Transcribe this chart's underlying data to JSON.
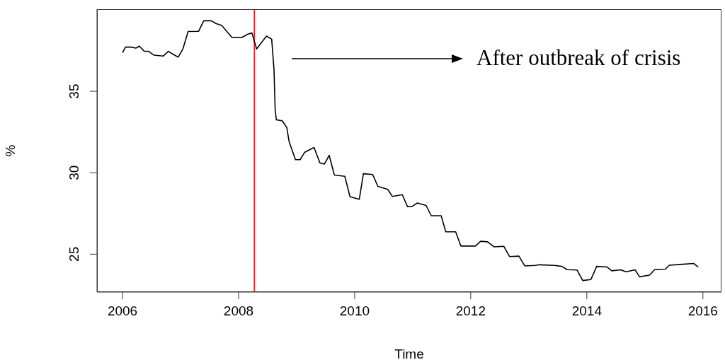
{
  "chart_data": {
    "type": "line",
    "xlabel": "Time",
    "ylabel": "%",
    "annotations": [
      "After outbreak of crisis"
    ],
    "xlim": [
      2005.56,
      2016.32
    ],
    "xticks": [
      2006,
      2008,
      2010,
      2012,
      2014,
      2016
    ],
    "ylim": [
      22.67,
      40.04
    ],
    "yticks": [
      25,
      30,
      35
    ],
    "marker": "none",
    "line_style": "solid",
    "ref_lines": [
      {
        "axis": "x",
        "value": 2008.27,
        "label": null,
        "color": "#ff0000"
      }
    ],
    "series": [
      {
        "color": "#000000",
        "x": [
          2006.0,
          2006.05,
          2006.15,
          2006.23,
          2006.29,
          2006.37,
          2006.45,
          2006.54,
          2006.7,
          2006.79,
          2006.88,
          2006.96,
          2007.04,
          2007.13,
          2007.31,
          2007.4,
          2007.53,
          2007.61,
          2007.71,
          2007.88,
          2008.05,
          2008.16,
          2008.23,
          2008.31,
          2008.48,
          2008.57,
          2008.61,
          2008.63,
          2008.65,
          2008.75,
          2008.83,
          2008.87,
          2008.98,
          2009.06,
          2009.14,
          2009.3,
          2009.4,
          2009.48,
          2009.56,
          2009.65,
          2009.83,
          2009.92,
          2010.08,
          2010.15,
          2010.31,
          2010.4,
          2010.57,
          2010.65,
          2010.82,
          2010.91,
          2010.99,
          2011.08,
          2011.23,
          2011.32,
          2011.49,
          2011.57,
          2011.74,
          2011.83,
          2012.08,
          2012.17,
          2012.29,
          2012.4,
          2012.57,
          2012.67,
          2012.83,
          2012.93,
          2013.11,
          2013.18,
          2013.44,
          2013.57,
          2013.66,
          2013.83,
          2013.93,
          2014.07,
          2014.17,
          2014.35,
          2014.43,
          2014.58,
          2014.68,
          2014.83,
          2014.91,
          2015.08,
          2015.17,
          2015.35,
          2015.42,
          2015.61,
          2015.84,
          2015.92
        ],
        "values": [
          37.36,
          37.71,
          37.71,
          37.65,
          37.77,
          37.47,
          37.45,
          37.22,
          37.16,
          37.45,
          37.25,
          37.1,
          37.6,
          38.67,
          38.68,
          39.33,
          39.33,
          39.16,
          39.04,
          38.32,
          38.29,
          38.51,
          38.58,
          37.6,
          38.39,
          38.2,
          36.33,
          33.87,
          33.25,
          33.19,
          32.78,
          31.91,
          30.8,
          30.8,
          31.26,
          31.55,
          30.61,
          30.53,
          31.07,
          29.86,
          29.78,
          28.52,
          28.37,
          29.94,
          29.89,
          29.16,
          28.98,
          28.54,
          28.65,
          27.92,
          27.93,
          28.14,
          27.99,
          27.36,
          27.36,
          26.37,
          26.37,
          25.5,
          25.5,
          25.79,
          25.76,
          25.45,
          25.48,
          24.85,
          24.88,
          24.28,
          24.31,
          24.35,
          24.31,
          24.25,
          24.05,
          24.03,
          23.38,
          23.44,
          24.25,
          24.21,
          23.98,
          24.04,
          23.92,
          24.04,
          23.61,
          23.71,
          24.05,
          24.07,
          24.32,
          24.37,
          24.43,
          24.21
        ]
      }
    ]
  }
}
